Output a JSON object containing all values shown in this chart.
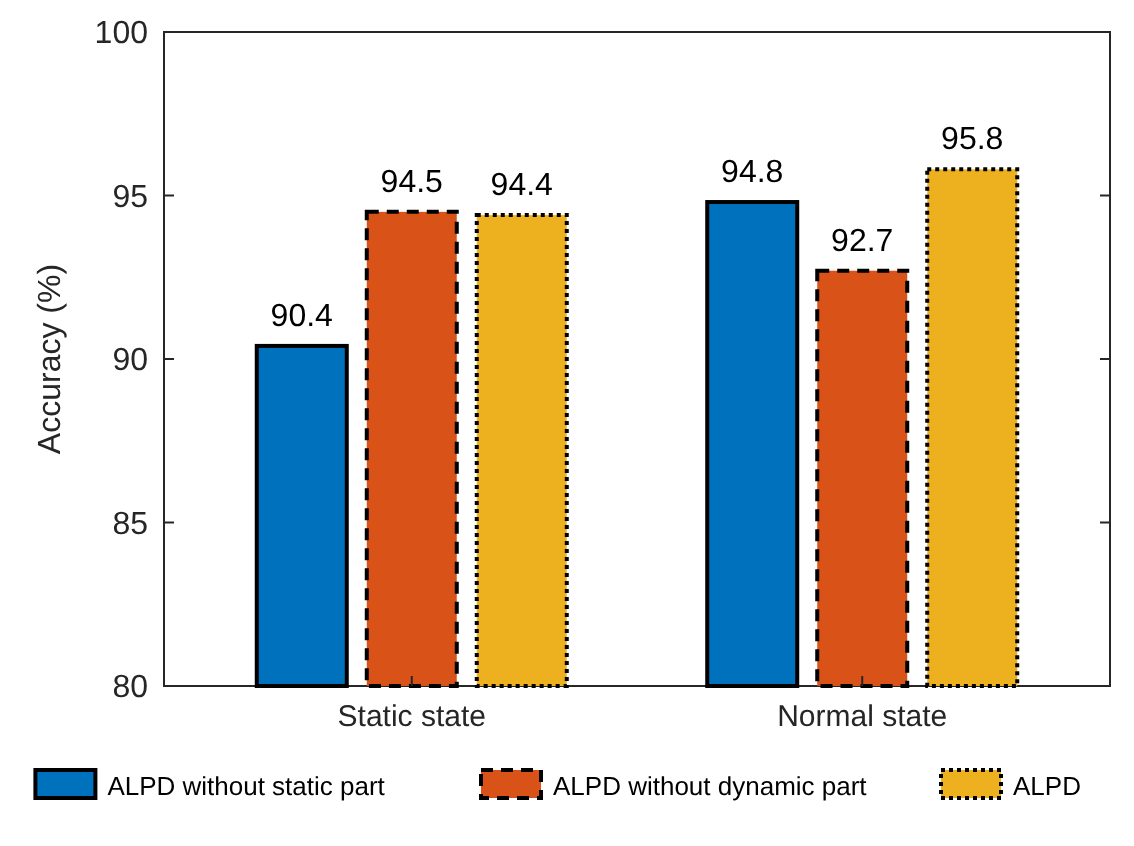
{
  "chart_data": {
    "type": "bar",
    "ylabel": "Accuracy (%)",
    "categories": [
      "Static state",
      "Normal state"
    ],
    "series": [
      {
        "name": "ALPD without static part",
        "color": "#0072bd",
        "line_style": "solid",
        "values": [
          90.4,
          94.8
        ]
      },
      {
        "name": "ALPD without dynamic part",
        "color": "#d95319",
        "line_style": "dashed",
        "values": [
          94.5,
          92.7
        ]
      },
      {
        "name": "ALPD",
        "color": "#edb120",
        "line_style": "dotted",
        "values": [
          94.4,
          95.8
        ]
      }
    ],
    "ylim": [
      80,
      100
    ],
    "yticks": [
      80,
      85,
      90,
      95,
      100
    ],
    "data_labels": true,
    "legend": "bottom",
    "grid": false
  }
}
